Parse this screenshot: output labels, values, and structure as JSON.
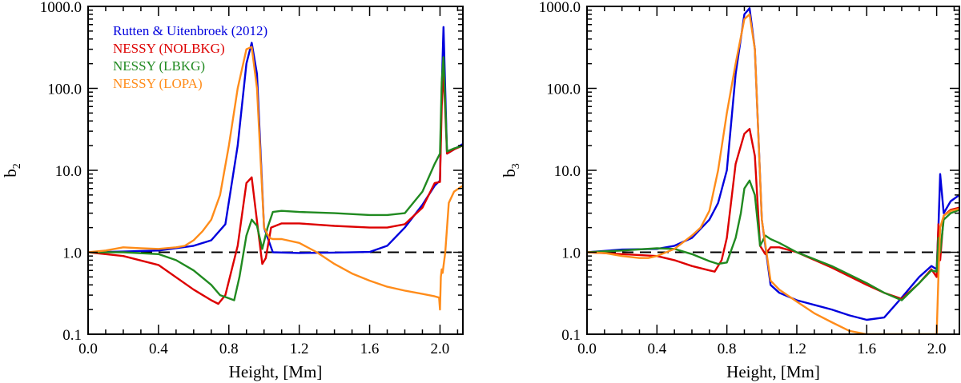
{
  "chart_data": [
    {
      "type": "line",
      "xlabel": "Height, [Mm]",
      "ylabel": "b",
      "ylabel_sub": "2",
      "yscale": "log",
      "xlim": [
        0.0,
        2.13
      ],
      "ylim": [
        0.1,
        1000.0
      ],
      "xticks": [
        0.0,
        0.4,
        0.8,
        1.2,
        1.6,
        2.0
      ],
      "xtick_labels": [
        "0.0",
        "0.4",
        "0.8",
        "1.2",
        "1.6",
        "2.0"
      ],
      "yticks": [
        0.1,
        1.0,
        10.0,
        100.0,
        1000.0
      ],
      "ytick_labels": [
        "0.1",
        "1.0",
        "10.0",
        "100.0",
        "1000.0"
      ],
      "reference_line": 1.0,
      "legend": {
        "location": "top-left",
        "entries": [
          {
            "label": "Rutten & Uitenbroek (2012)",
            "color": "#0000dd"
          },
          {
            "label": "NESSY (NOLBKG)",
            "color": "#dd0000"
          },
          {
            "label": "NESSY (LBKG)",
            "color": "#208a20"
          },
          {
            "label": "NESSY (LOPA)",
            "color": "#ff8c1a"
          }
        ]
      },
      "series": [
        {
          "name": "Rutten & Uitenbroek (2012)",
          "color": "#0000dd",
          "x": [
            0.0,
            0.2,
            0.4,
            0.6,
            0.7,
            0.78,
            0.85,
            0.9,
            0.93,
            0.96,
            1.0,
            1.05,
            1.2,
            1.4,
            1.6,
            1.7,
            1.8,
            1.9,
            1.97,
            2.0,
            2.01,
            2.02,
            2.04,
            2.08,
            2.13
          ],
          "y": [
            1.0,
            1.02,
            1.05,
            1.2,
            1.4,
            2.2,
            20,
            200,
            360,
            150,
            2,
            1.0,
            0.98,
            0.99,
            1.01,
            1.2,
            2.0,
            3.8,
            6.5,
            7.5,
            100,
            560,
            16,
            18,
            21
          ]
        },
        {
          "name": "NESSY (NOLBKG)",
          "color": "#dd0000",
          "x": [
            0.0,
            0.2,
            0.4,
            0.6,
            0.7,
            0.74,
            0.78,
            0.85,
            0.9,
            0.93,
            0.96,
            0.99,
            1.01,
            1.04,
            1.1,
            1.2,
            1.4,
            1.6,
            1.7,
            1.8,
            1.9,
            1.97,
            2.0,
            2.01,
            2.02,
            2.04,
            2.08,
            2.13
          ],
          "y": [
            1.0,
            0.9,
            0.7,
            0.35,
            0.26,
            0.235,
            0.3,
            1.2,
            7.0,
            8.2,
            2.4,
            0.72,
            0.85,
            2.0,
            2.25,
            2.25,
            2.1,
            2.0,
            2.0,
            2.2,
            3.5,
            7.0,
            7.2,
            60,
            170,
            16,
            18,
            20
          ]
        },
        {
          "name": "NESSY (LBKG)",
          "color": "#208a20",
          "x": [
            0.0,
            0.2,
            0.4,
            0.5,
            0.6,
            0.7,
            0.75,
            0.79,
            0.83,
            0.86,
            0.9,
            0.93,
            0.96,
            0.99,
            1.02,
            1.05,
            1.1,
            1.2,
            1.4,
            1.6,
            1.7,
            1.8,
            1.9,
            1.97,
            2.0,
            2.01,
            2.02,
            2.04,
            2.08,
            2.13
          ],
          "y": [
            1.0,
            1.0,
            0.95,
            0.8,
            0.6,
            0.4,
            0.3,
            0.28,
            0.26,
            0.5,
            1.6,
            2.5,
            2.1,
            1.1,
            2.0,
            3.1,
            3.2,
            3.1,
            3.0,
            2.85,
            2.85,
            3.0,
            5.5,
            12,
            16,
            120,
            240,
            17,
            18.5,
            20
          ]
        },
        {
          "name": "NESSY (LOPA)",
          "color": "#ff8c1a",
          "x": [
            0.0,
            0.1,
            0.2,
            0.3,
            0.4,
            0.5,
            0.55,
            0.6,
            0.65,
            0.7,
            0.75,
            0.8,
            0.85,
            0.9,
            0.93,
            0.96,
            1.0,
            1.03,
            1.05,
            1.1,
            1.2,
            1.3,
            1.4,
            1.5,
            1.6,
            1.7,
            1.8,
            1.9,
            1.97,
            1.995,
            2.0,
            2.005,
            2.01,
            2.015,
            2.03,
            2.05,
            2.08,
            2.13
          ],
          "y": [
            1.0,
            1.05,
            1.15,
            1.12,
            1.1,
            1.15,
            1.2,
            1.4,
            1.8,
            2.5,
            5.0,
            20,
            100,
            300,
            320,
            100,
            2,
            1.5,
            1.45,
            1.45,
            1.3,
            1.0,
            0.72,
            0.55,
            0.45,
            0.38,
            0.34,
            0.31,
            0.29,
            0.28,
            0.2,
            0.5,
            0.62,
            0.56,
            1.0,
            4.0,
            5.5,
            6.5
          ]
        }
      ]
    },
    {
      "type": "line",
      "xlabel": "Height, [Mm]",
      "ylabel": "b",
      "ylabel_sub": "3",
      "yscale": "log",
      "xlim": [
        0.0,
        2.13
      ],
      "ylim": [
        0.1,
        1000.0
      ],
      "xticks": [
        0.0,
        0.4,
        0.8,
        1.2,
        1.6,
        2.0
      ],
      "xtick_labels": [
        "0.0",
        "0.4",
        "0.8",
        "1.2",
        "1.6",
        "2.0"
      ],
      "yticks": [
        0.1,
        1.0,
        10.0,
        100.0,
        1000.0
      ],
      "ytick_labels": [
        "0.1",
        "1.0",
        "10.0",
        "100.0",
        "1000.0"
      ],
      "reference_line": 1.0,
      "series": [
        {
          "name": "Rutten & Uitenbroek (2012)",
          "color": "#0000dd",
          "x": [
            0.0,
            0.2,
            0.4,
            0.5,
            0.6,
            0.7,
            0.75,
            0.8,
            0.85,
            0.9,
            0.93,
            0.96,
            1.0,
            1.05,
            1.1,
            1.2,
            1.4,
            1.5,
            1.6,
            1.7,
            1.8,
            1.9,
            1.97,
            2.0,
            2.01,
            2.02,
            2.04,
            2.08,
            2.13
          ],
          "y": [
            1.0,
            1.08,
            1.1,
            1.2,
            1.5,
            2.5,
            4.0,
            10,
            150,
            800,
            950,
            300,
            2.5,
            0.4,
            0.32,
            0.26,
            0.2,
            0.17,
            0.15,
            0.16,
            0.28,
            0.5,
            0.68,
            0.62,
            2.0,
            9.0,
            3.0,
            4.2,
            5.0
          ]
        },
        {
          "name": "NESSY (NOLBKG)",
          "color": "#dd0000",
          "x": [
            0.0,
            0.2,
            0.4,
            0.5,
            0.6,
            0.7,
            0.73,
            0.77,
            0.8,
            0.85,
            0.9,
            0.93,
            0.96,
            0.99,
            1.02,
            1.05,
            1.1,
            1.2,
            1.4,
            1.6,
            1.7,
            1.8,
            1.9,
            1.97,
            2.0,
            2.01,
            2.02,
            2.04,
            2.08,
            2.13
          ],
          "y": [
            1.0,
            0.95,
            0.9,
            0.8,
            0.68,
            0.6,
            0.58,
            0.8,
            1.5,
            12,
            28,
            32,
            15,
            1.2,
            0.95,
            1.15,
            1.15,
            1.0,
            0.65,
            0.4,
            0.32,
            0.27,
            0.42,
            0.62,
            0.5,
            2.2,
            0.8,
            2.8,
            3.3,
            3.5
          ]
        },
        {
          "name": "NESSY (LBKG)",
          "color": "#208a20",
          "x": [
            0.0,
            0.2,
            0.4,
            0.5,
            0.6,
            0.7,
            0.75,
            0.8,
            0.85,
            0.88,
            0.9,
            0.93,
            0.96,
            0.99,
            1.02,
            1.05,
            1.1,
            1.2,
            1.4,
            1.6,
            1.7,
            1.8,
            1.9,
            1.97,
            2.0,
            2.01,
            2.02,
            2.04,
            2.08,
            2.13
          ],
          "y": [
            1.0,
            1.05,
            1.12,
            1.1,
            0.95,
            0.78,
            0.72,
            0.75,
            1.5,
            3.0,
            6.0,
            7.5,
            5.0,
            1.2,
            1.6,
            1.45,
            1.3,
            1.0,
            0.68,
            0.42,
            0.32,
            0.26,
            0.42,
            0.6,
            0.58,
            1.5,
            1.0,
            2.5,
            3.0,
            3.3
          ]
        },
        {
          "name": "NESSY (LOPA)",
          "color": "#ff8c1a",
          "x": [
            0.0,
            0.1,
            0.2,
            0.3,
            0.35,
            0.4,
            0.5,
            0.6,
            0.65,
            0.7,
            0.75,
            0.8,
            0.85,
            0.9,
            0.93,
            0.96,
            1.0,
            1.05,
            1.1,
            1.2,
            1.3,
            1.4,
            1.5,
            1.6,
            1.612,
            1.99,
            2.0,
            2.01,
            2.02,
            2.04,
            2.08,
            2.13
          ],
          "y": [
            1.0,
            0.98,
            0.9,
            0.85,
            0.85,
            0.9,
            1.1,
            1.6,
            2.0,
            3.2,
            10,
            50,
            200,
            700,
            800,
            300,
            2.5,
            0.45,
            0.35,
            0.25,
            0.18,
            0.14,
            0.11,
            0.1,
            0.1,
            0.1,
            0.1,
            0.5,
            2.0,
            2.8,
            3.2,
            3.4
          ]
        }
      ]
    }
  ]
}
